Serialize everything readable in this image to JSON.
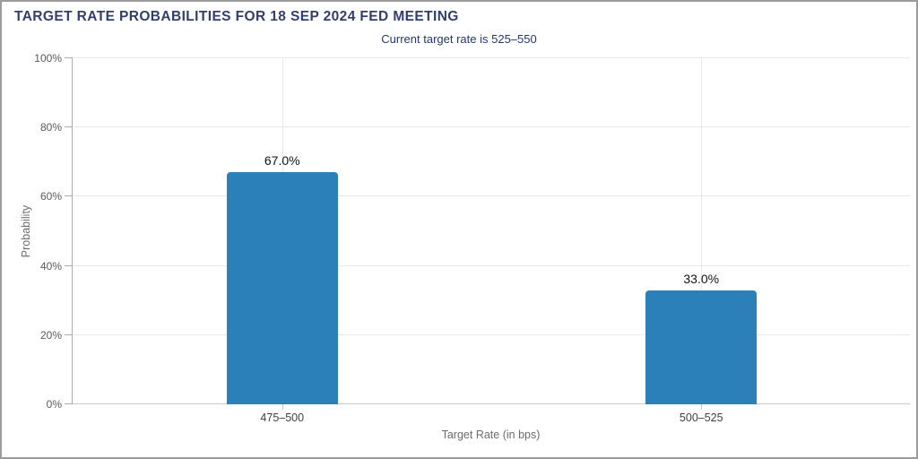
{
  "header": {
    "title": "TARGET RATE PROBABILITIES FOR 18 SEP 2024 FED MEETING",
    "subtitle": "Current target rate is 525–550"
  },
  "chart_data": {
    "type": "bar",
    "title": "TARGET RATE PROBABILITIES FOR 18 SEP 2024 FED MEETING",
    "subtitle": "Current target rate is 525–550",
    "categories": [
      "475–500",
      "500–525"
    ],
    "values": [
      67.0,
      33.0
    ],
    "value_labels": [
      "67.0%",
      "33.0%"
    ],
    "xlabel": "Target Rate (in bps)",
    "ylabel": "Probability",
    "ylim": [
      0,
      100
    ],
    "yticks": [
      0,
      20,
      40,
      60,
      80,
      100
    ],
    "ytick_labels": [
      "0%",
      "20%",
      "40%",
      "60%",
      "80%",
      "100%"
    ],
    "grid": true,
    "legend": "none",
    "bar_color": "#2B80B9"
  },
  "colors": {
    "bar": "#2B80B9",
    "title_text": "#333E6D",
    "subtitle_text": "#26386B"
  }
}
